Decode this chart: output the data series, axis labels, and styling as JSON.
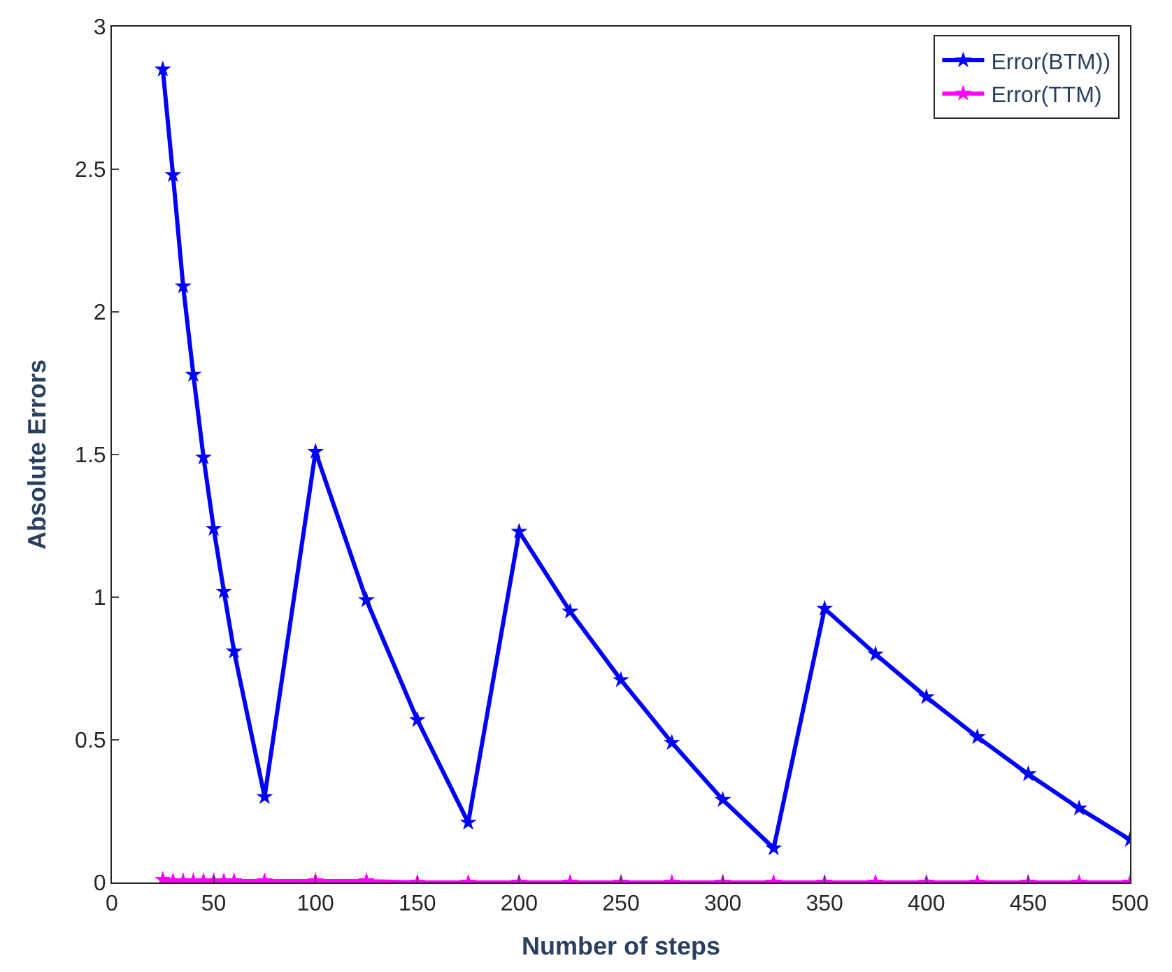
{
  "chart_data": {
    "type": "line",
    "xlabel": "Number of steps",
    "ylabel": "Absolute Errors",
    "x": [
      25,
      30,
      35,
      40,
      45,
      50,
      55,
      60,
      75,
      100,
      125,
      150,
      175,
      200,
      225,
      250,
      275,
      300,
      325,
      350,
      375,
      400,
      425,
      450,
      475,
      500
    ],
    "series": [
      {
        "name": "Error(BTM))",
        "color": "#0000ff",
        "values": [
          2.85,
          2.48,
          2.09,
          1.78,
          1.49,
          1.24,
          1.02,
          0.81,
          0.3,
          1.51,
          0.99,
          0.57,
          0.21,
          1.23,
          0.95,
          0.71,
          0.49,
          0.29,
          0.12,
          0.96,
          0.8,
          0.65,
          0.51,
          0.38,
          0.26,
          0.15
        ]
      },
      {
        "name": "Error(TTM)",
        "color": "#ff00ff",
        "values": [
          0.01,
          0.005,
          0.005,
          0.005,
          0.005,
          0.005,
          0.005,
          0.005,
          0.005,
          0.005,
          0.005,
          0,
          0,
          0,
          0,
          0,
          0,
          0,
          0,
          0,
          0,
          0,
          0,
          0,
          0,
          0
        ]
      }
    ],
    "xlim": [
      0,
      500
    ],
    "xticks": [
      0,
      50,
      100,
      150,
      200,
      250,
      300,
      350,
      400,
      450,
      500
    ],
    "ylim": [
      0,
      3
    ],
    "yticks": [
      0,
      0.5,
      1,
      1.5,
      2,
      2.5,
      3
    ],
    "legend": "top right",
    "marker": "star",
    "line_style": "solid"
  }
}
